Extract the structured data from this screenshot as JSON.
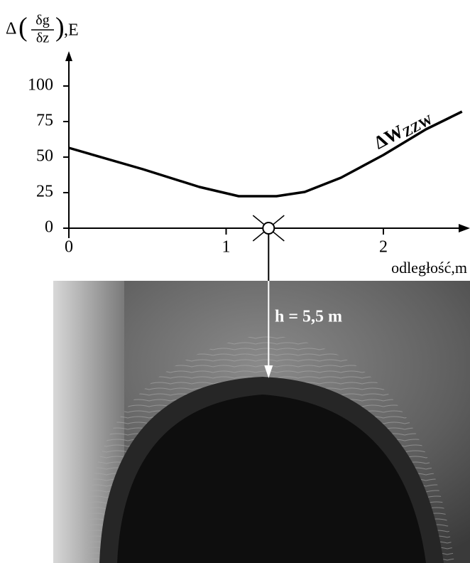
{
  "chart_data": {
    "type": "line",
    "y_label": {
      "prefix": "Δ",
      "numerator": "δg",
      "denominator": "δz",
      "suffix": ",E"
    },
    "x_label": "odległość,m",
    "series": [
      {
        "name": "ΔW",
        "subscript": "ZZW",
        "color": "#000000",
        "x": [
          0,
          0.47,
          0.83,
          1.08,
          1.32,
          1.5,
          1.73,
          2.0,
          2.27,
          2.5
        ],
        "values": [
          56.5,
          41.5,
          29,
          22.5,
          22.5,
          25.5,
          35.5,
          51.5,
          69.5,
          82
        ]
      }
    ],
    "xlim": [
      0,
      2.5
    ],
    "ylim": [
      0,
      120
    ],
    "xticks": [
      0,
      1,
      2
    ],
    "yticks": [
      0,
      25,
      50,
      75,
      100
    ],
    "station_x": 1.27,
    "annotation": "h = 5,5 m"
  }
}
